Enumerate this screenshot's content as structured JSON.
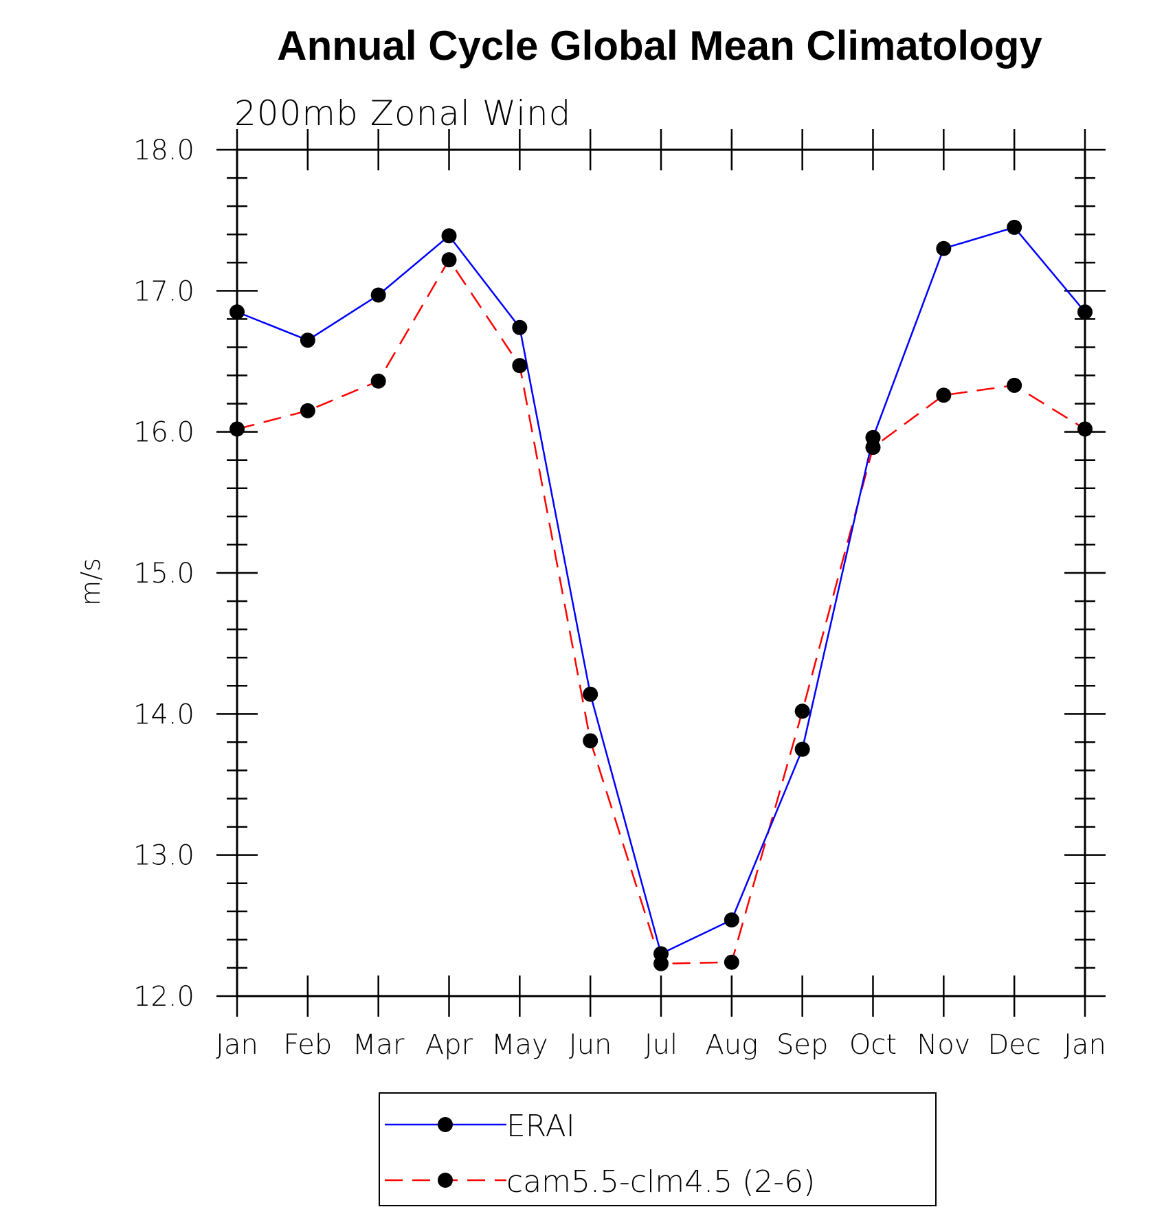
{
  "chart_data": {
    "type": "line",
    "title": "Annual Cycle Global Mean Climatology",
    "subtitle": "200mb Zonal Wind",
    "ylabel": "m/s",
    "xlabel": "",
    "categories": [
      "Jan",
      "Feb",
      "Mar",
      "Apr",
      "May",
      "Jun",
      "Jul",
      "Aug",
      "Sep",
      "Oct",
      "Nov",
      "Dec",
      "Jan"
    ],
    "ylim": [
      12.0,
      18.0
    ],
    "yticks": [
      "12.0",
      "13.0",
      "14.0",
      "15.0",
      "16.0",
      "17.0",
      "18.0"
    ],
    "grid": false,
    "legend_position": "bottom",
    "series": [
      {
        "name": "ERAI",
        "color": "#0000ff",
        "style": "solid",
        "marker": "filled-circle",
        "values": [
          16.85,
          16.65,
          16.97,
          17.39,
          16.74,
          14.14,
          12.3,
          12.54,
          13.75,
          15.96,
          17.3,
          17.45,
          16.85
        ]
      },
      {
        "name": "cam5.5-clm4.5 (2-6)",
        "color": "#ff0000",
        "style": "dashed",
        "marker": "filled-circle",
        "values": [
          16.02,
          16.15,
          16.36,
          17.22,
          16.47,
          13.81,
          12.23,
          12.24,
          14.02,
          15.89,
          16.26,
          16.33,
          16.02
        ]
      }
    ]
  }
}
